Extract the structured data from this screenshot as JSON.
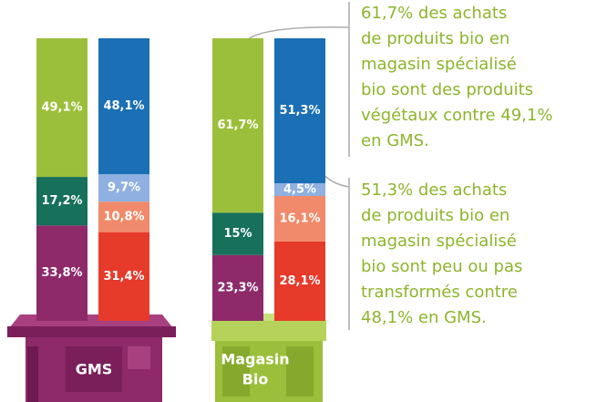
{
  "chart_data": {
    "type": "stacked_bar",
    "groups": [
      {
        "label_lines": [
          "GMS"
        ],
        "stacks": [
          {
            "values": [
              33.8,
              17.2,
              49.1
            ],
            "value_labels": [
              "33,8%",
              "17,2%",
              "49,1%"
            ],
            "colors": [
              "#8e2a6a",
              "#16705a",
              "#9cbf3b"
            ]
          },
          {
            "values": [
              31.4,
              10.8,
              9.7,
              48.1
            ],
            "value_labels": [
              "31,4%",
              "10,8%",
              "9,7%",
              "48,1%"
            ],
            "colors": [
              "#e63a2b",
              "#f08a6a",
              "#8fb0e0",
              "#1a6fb5"
            ]
          }
        ]
      },
      {
        "label_lines": [
          "Magasin",
          "Bio"
        ],
        "stacks": [
          {
            "values": [
              23.3,
              15,
              61.7
            ],
            "value_labels": [
              "23,3%",
              "15%",
              "61,7%"
            ],
            "colors": [
              "#8e2a6a",
              "#16705a",
              "#9cbf3b"
            ]
          },
          {
            "values": [
              28.1,
              16.1,
              4.5,
              51.3
            ],
            "value_labels": [
              "28,1%",
              "16,1%",
              "4,5%",
              "51,3%"
            ],
            "colors": [
              "#e63a2b",
              "#f08a6a",
              "#8fb0e0",
              "#1a6fb5"
            ]
          }
        ]
      }
    ],
    "annotations": [
      {
        "lines": [
          "61,7% des achats",
          "de produits bio en",
          "magasin spécialisé",
          "bio sont des produits",
          "végétaux contre 49,1%",
          "en GMS."
        ]
      },
      {
        "lines": [
          "51,3% des achats",
          "de produits bio en",
          "magasin spécialisé",
          "bio sont peu ou pas",
          "transformés contre",
          "48,1% en GMS."
        ]
      }
    ]
  }
}
